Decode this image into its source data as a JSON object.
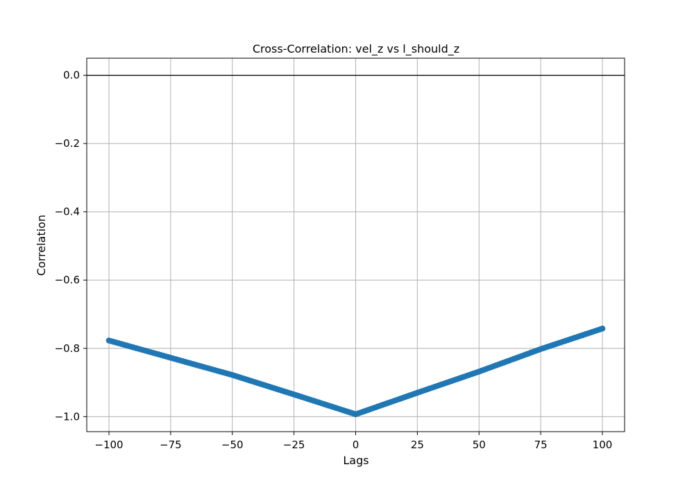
{
  "chart_data": {
    "type": "scatter",
    "title": "Cross-Correlation: vel_z vs l_should_z",
    "xlabel": "Lags",
    "ylabel": "Correlation",
    "xlim": [
      -109,
      109
    ],
    "ylim": [
      -1.044,
      0.05
    ],
    "xticks": [
      -100,
      -75,
      -50,
      -25,
      0,
      25,
      50,
      75,
      100
    ],
    "xtick_labels": [
      "−100",
      "−75",
      "−50",
      "−25",
      "0",
      "25",
      "50",
      "75",
      "100"
    ],
    "yticks": [
      0.0,
      -0.2,
      -0.4,
      -0.6,
      -0.8,
      -1.0
    ],
    "ytick_labels": [
      "0.0",
      "−0.2",
      "−0.4",
      "−0.6",
      "−0.8",
      "−1.0"
    ],
    "grid": true,
    "reference_line_y": 0.0,
    "series": [
      {
        "color": "#1f77b4",
        "x_start": -100,
        "x_end": 100,
        "x_step": 1,
        "anchors": [
          {
            "x": -100,
            "y": -0.777
          },
          {
            "x": -50,
            "y": -0.878
          },
          {
            "x": -25,
            "y": -0.935
          },
          {
            "x": 0,
            "y": -0.993
          },
          {
            "x": 25,
            "y": -0.93
          },
          {
            "x": 50,
            "y": -0.868
          },
          {
            "x": 75,
            "y": -0.802
          },
          {
            "x": 100,
            "y": -0.742
          }
        ]
      }
    ]
  }
}
